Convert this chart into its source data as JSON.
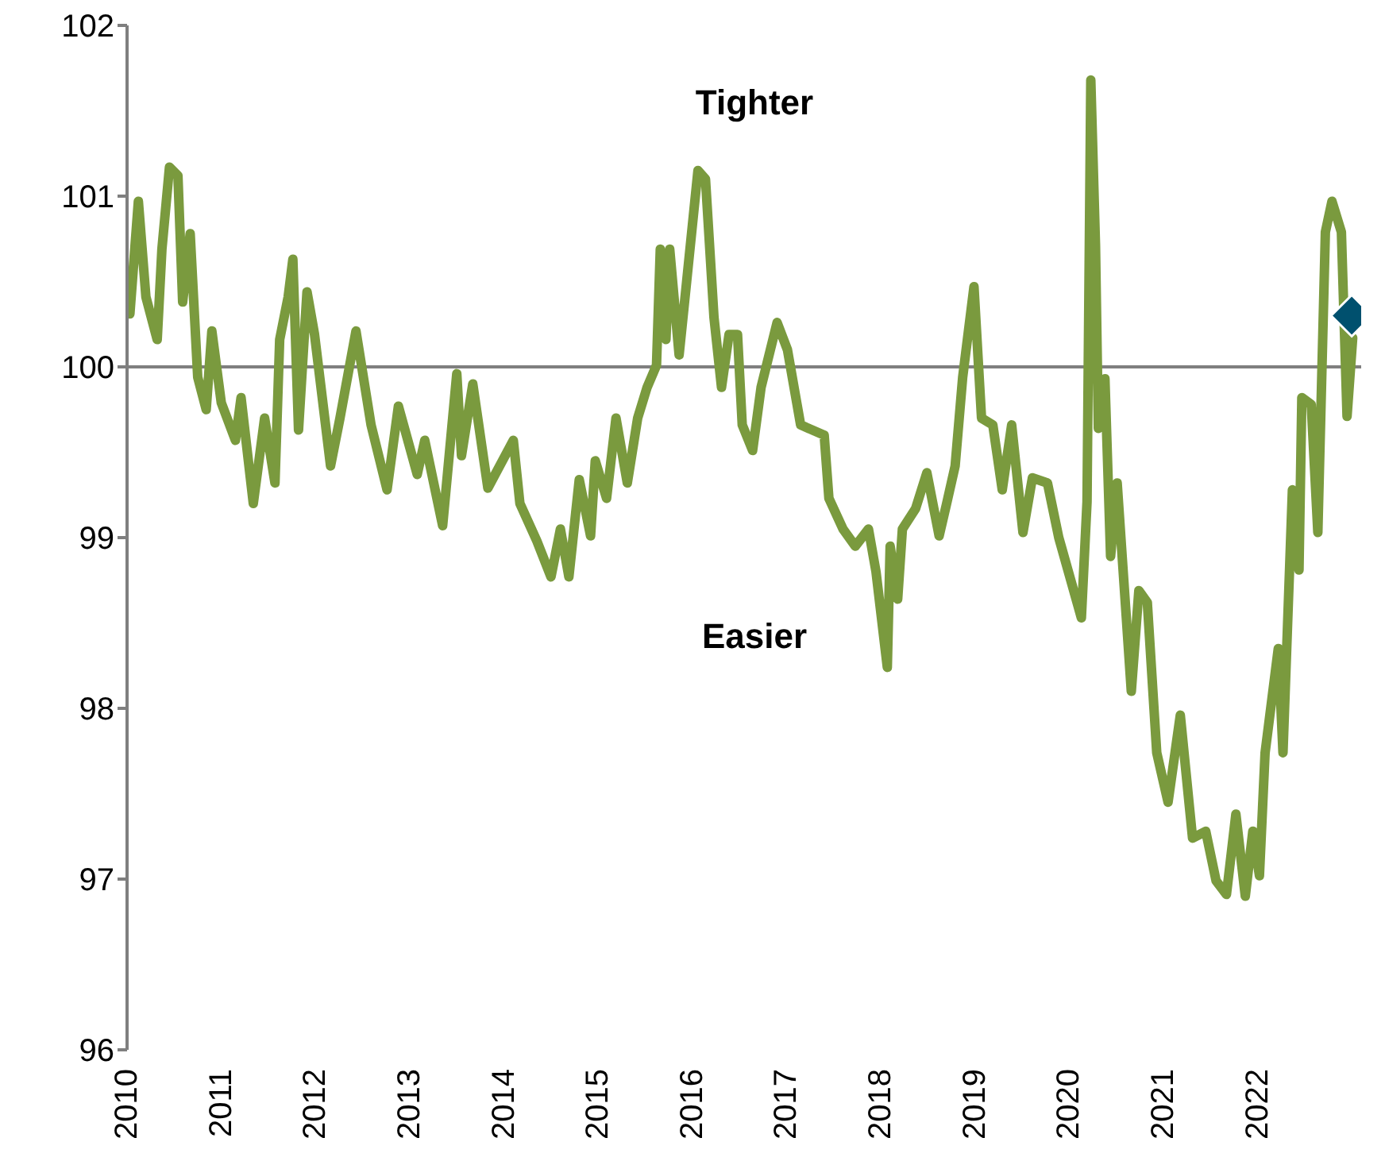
{
  "chart_data": {
    "type": "line",
    "xlim": [
      2010,
      2023.1
    ],
    "xticks": [
      2010,
      2011,
      2012,
      2013,
      2014,
      2015,
      2016,
      2017,
      2018,
      2019,
      2020,
      2021,
      2022
    ],
    "ylim": [
      96,
      102
    ],
    "yticks": [
      96,
      97,
      98,
      99,
      100,
      101,
      102
    ],
    "grid": false,
    "legend": false,
    "annotations": [
      "Tighter",
      "Easier"
    ],
    "ref_lines": [
      {
        "axis": "y",
        "value": 100,
        "label": null,
        "color": "#7f7f7f"
      }
    ],
    "series": [
      {
        "color": "#7a9a3e",
        "marker": "none",
        "x": [
          2010.03,
          2010.12,
          2010.2,
          2010.32,
          2010.37,
          2010.45,
          2010.54,
          2010.59,
          2010.67,
          2010.75,
          2010.84,
          2010.9,
          2011.0,
          2011.15,
          2011.21,
          2011.34,
          2011.46,
          2011.57,
          2011.62,
          2011.71,
          2011.76,
          2011.82,
          2011.91,
          2011.99,
          2012.16,
          2012.26,
          2012.43,
          2012.59,
          2012.76,
          2012.88,
          2013.08,
          2013.16,
          2013.35,
          2013.5,
          2013.55,
          2013.67,
          2013.83,
          2014.1,
          2014.17,
          2014.35,
          2014.5,
          2014.6,
          2014.69,
          2014.8,
          2014.92,
          2014.97,
          2015.09,
          2015.19,
          2015.31,
          2015.42,
          2015.52,
          2015.62,
          2015.66,
          2015.72,
          2015.76,
          2015.86,
          2015.94,
          2016.06,
          2016.14,
          2016.23,
          2016.31,
          2016.39,
          2016.48,
          2016.53,
          2016.64,
          2016.73,
          2016.9,
          2017.01,
          2017.15,
          2017.4,
          2017.45,
          2017.6,
          2017.73,
          2017.87,
          2017.95,
          2018.07,
          2018.1,
          2018.18,
          2018.23,
          2018.37,
          2018.49,
          2018.62,
          2018.7,
          2018.79,
          2018.87,
          2018.99,
          2019.07,
          2019.19,
          2019.29,
          2019.39,
          2019.51,
          2019.61,
          2019.77,
          2019.89,
          2020.13,
          2020.19,
          2020.23,
          2020.28,
          2020.31,
          2020.38,
          2020.44,
          2020.51,
          2020.66,
          2020.74,
          2020.83,
          2020.93,
          2021.05,
          2021.18,
          2021.31,
          2021.45,
          2021.56,
          2021.67,
          2021.77,
          2021.87,
          2021.95,
          2022.02,
          2022.08,
          2022.22,
          2022.27,
          2022.37,
          2022.44,
          2022.47,
          2022.57,
          2022.64,
          2022.72,
          2022.79,
          2022.89,
          2022.95,
          2023.01
        ],
        "values": [
          100.31,
          100.97,
          100.41,
          100.16,
          100.69,
          101.17,
          101.12,
          100.38,
          100.78,
          99.94,
          99.75,
          100.21,
          99.79,
          99.57,
          99.82,
          99.2,
          99.7,
          99.32,
          100.16,
          100.41,
          100.63,
          99.63,
          100.44,
          100.19,
          99.42,
          99.7,
          100.21,
          99.66,
          99.28,
          99.77,
          99.37,
          99.57,
          99.07,
          99.96,
          99.48,
          99.9,
          99.29,
          99.57,
          99.2,
          98.98,
          98.77,
          99.05,
          98.77,
          99.34,
          99.01,
          99.45,
          99.23,
          99.7,
          99.32,
          99.7,
          99.88,
          100.01,
          100.69,
          100.16,
          100.69,
          100.07,
          100.5,
          101.15,
          101.1,
          100.29,
          99.88,
          100.19,
          100.19,
          99.66,
          99.51,
          99.88,
          100.26,
          100.1,
          99.66,
          99.6,
          99.23,
          99.05,
          98.95,
          99.05,
          98.8,
          98.24,
          98.95,
          98.64,
          99.05,
          99.17,
          99.38,
          99.01,
          99.2,
          99.42,
          99.94,
          100.47,
          99.7,
          99.66,
          99.28,
          99.66,
          99.03,
          99.35,
          99.32,
          99.0,
          98.53,
          99.21,
          101.68,
          100.71,
          99.64,
          99.93,
          98.89,
          99.32,
          98.1,
          98.69,
          98.62,
          97.74,
          97.45,
          97.96,
          97.24,
          97.28,
          96.99,
          96.91,
          97.38,
          96.9,
          97.28,
          97.02,
          97.74,
          98.35,
          97.74,
          99.28,
          98.81,
          99.82,
          99.78,
          99.03,
          100.79,
          100.97,
          100.79,
          99.71,
          100.17
        ]
      },
      {
        "type": "scatter",
        "color": "#00506e",
        "marker": "diamond",
        "x": [
          2023.0
        ],
        "values": [
          100.3
        ]
      }
    ]
  }
}
